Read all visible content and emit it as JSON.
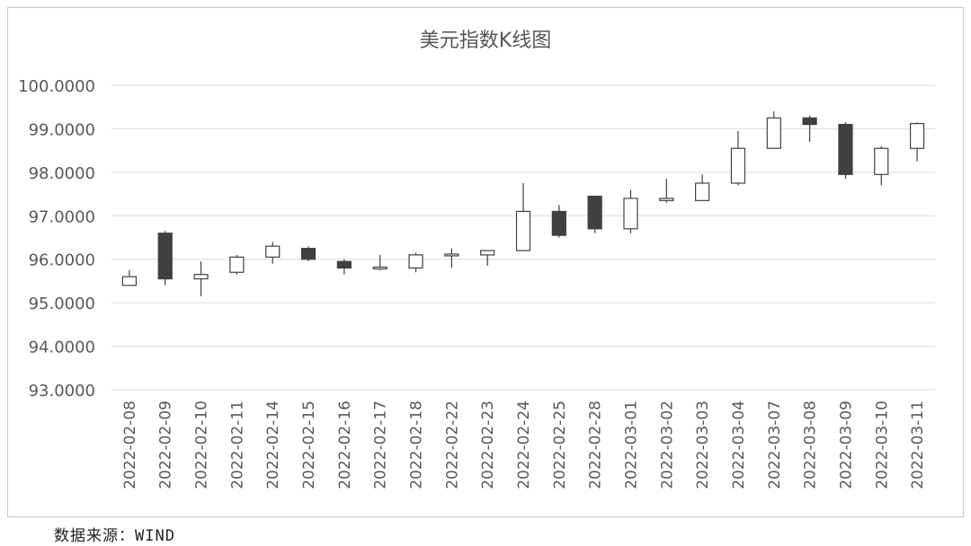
{
  "chart_data": {
    "type": "candlestick",
    "title": "美元指数K线图",
    "xlabel": "",
    "ylabel": "",
    "ylim": [
      93,
      100
    ],
    "yticks": [
      "100.0000",
      "99.0000",
      "98.0000",
      "97.0000",
      "96.0000",
      "95.0000",
      "94.0000",
      "93.0000"
    ],
    "grid": true,
    "up_color": "#ffffff",
    "down_color": "#404040",
    "categories": [
      "2022-02-08",
      "2022-02-09",
      "2022-02-10",
      "2022-02-11",
      "2022-02-14",
      "2022-02-15",
      "2022-02-16",
      "2022-02-17",
      "2022-02-18",
      "2022-02-22",
      "2022-02-23",
      "2022-02-24",
      "2022-02-25",
      "2022-02-28",
      "2022-03-01",
      "2022-03-02",
      "2022-03-03",
      "2022-03-04",
      "2022-03-07",
      "2022-03-08",
      "2022-03-09",
      "2022-03-10",
      "2022-03-11"
    ],
    "series": [
      {
        "open": 95.4,
        "close": 95.6,
        "high": 95.75,
        "low": 95.4
      },
      {
        "open": 96.6,
        "close": 95.55,
        "high": 96.65,
        "low": 95.4
      },
      {
        "open": 95.55,
        "close": 95.65,
        "high": 95.95,
        "low": 95.15
      },
      {
        "open": 95.7,
        "close": 96.05,
        "high": 96.1,
        "low": 95.65
      },
      {
        "open": 96.05,
        "close": 96.3,
        "high": 96.4,
        "low": 95.9
      },
      {
        "open": 96.25,
        "close": 96.0,
        "high": 96.3,
        "low": 95.95
      },
      {
        "open": 95.95,
        "close": 95.8,
        "high": 96.0,
        "low": 95.65
      },
      {
        "open": 95.8,
        "close": 95.82,
        "high": 96.1,
        "low": 95.75
      },
      {
        "open": 95.8,
        "close": 96.1,
        "high": 96.15,
        "low": 95.7
      },
      {
        "open": 96.08,
        "close": 96.12,
        "high": 96.25,
        "low": 95.8
      },
      {
        "open": 96.1,
        "close": 96.2,
        "high": 96.2,
        "low": 95.85
      },
      {
        "open": 96.2,
        "close": 97.1,
        "high": 97.75,
        "low": 96.2
      },
      {
        "open": 97.1,
        "close": 96.55,
        "high": 97.25,
        "low": 96.5
      },
      {
        "open": 97.45,
        "close": 96.7,
        "high": 97.45,
        "low": 96.6
      },
      {
        "open": 96.7,
        "close": 97.4,
        "high": 97.6,
        "low": 96.6
      },
      {
        "open": 97.35,
        "close": 97.4,
        "high": 97.85,
        "low": 97.3
      },
      {
        "open": 97.35,
        "close": 97.75,
        "high": 97.95,
        "low": 97.35
      },
      {
        "open": 97.75,
        "close": 98.55,
        "high": 98.95,
        "low": 97.7
      },
      {
        "open": 98.55,
        "close": 99.25,
        "high": 99.4,
        "low": 98.55
      },
      {
        "open": 99.25,
        "close": 99.1,
        "high": 99.3,
        "low": 98.7
      },
      {
        "open": 99.1,
        "close": 97.95,
        "high": 99.15,
        "low": 97.85
      },
      {
        "open": 97.95,
        "close": 98.55,
        "high": 98.6,
        "low": 97.7
      },
      {
        "open": 98.55,
        "close": 99.12,
        "high": 99.15,
        "low": 98.25
      }
    ]
  },
  "source_note": "数据来源：WIND"
}
